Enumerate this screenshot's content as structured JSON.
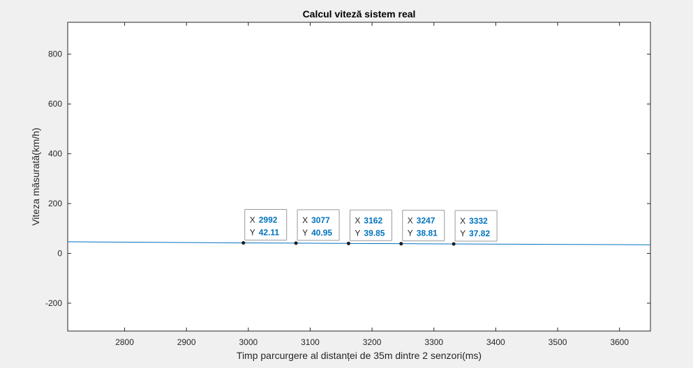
{
  "chart_data": {
    "type": "line",
    "title": "Calcul viteză sistem real",
    "xlabel": "Timp parcurgere al distanței de 35m dintre 2 senzori(ms)",
    "ylabel": "Viteza măsurată(km/h)",
    "xlim": [
      2708,
      3650
    ],
    "ylim": [
      -312,
      928
    ],
    "xticks": [
      2800,
      2900,
      3000,
      3100,
      3200,
      3300,
      3400,
      3500,
      3600
    ],
    "yticks": [
      -200,
      0,
      200,
      400,
      600,
      800
    ],
    "grid": false,
    "series": [
      {
        "x": [
          2708,
          2992,
          3077,
          3162,
          3247,
          3332,
          3650
        ],
        "y": [
          46.53,
          42.11,
          40.95,
          39.85,
          38.81,
          37.82,
          34.52
        ],
        "color": "#0072bd"
      }
    ],
    "datatips": [
      {
        "x_key": "X",
        "x": "2992",
        "y_key": "Y",
        "y": "42.11"
      },
      {
        "x_key": "X",
        "x": "3077",
        "y_key": "Y",
        "y": "40.95"
      },
      {
        "x_key": "X",
        "x": "3162",
        "y_key": "Y",
        "y": "39.85"
      },
      {
        "x_key": "X",
        "x": "3247",
        "y_key": "Y",
        "y": "38.81"
      },
      {
        "x_key": "X",
        "x": "3332",
        "y_key": "Y",
        "y": "37.82"
      }
    ]
  },
  "colors": {
    "figure_background": "#f0f0f0",
    "axes_background": "#ffffff",
    "axis_color": "#262626",
    "line": "#0072bd",
    "tip_value": "#0072bd",
    "tip_border": "#999999"
  }
}
